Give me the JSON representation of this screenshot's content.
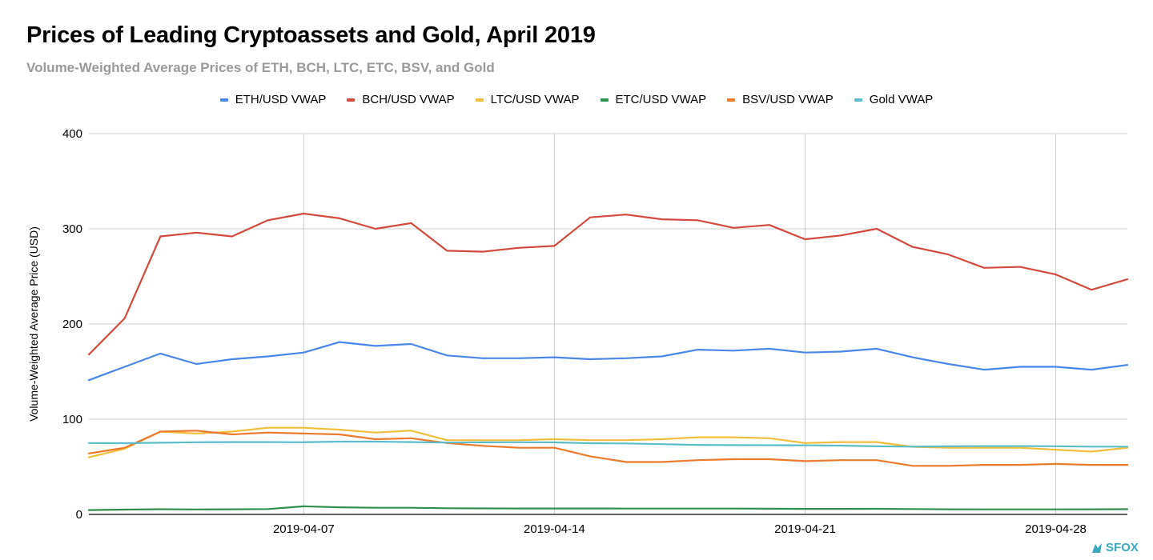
{
  "header": {
    "title": "Prices of Leading Cryptoassets and Gold, April 2019",
    "subtitle": "Volume-Weighted Average Prices of ETH, BCH, LTC, ETC, BSV, and Gold"
  },
  "brand": {
    "logo_text": "SFOX",
    "color": "#39a9c0"
  },
  "chart_data": {
    "type": "line",
    "title": "Prices of Leading Cryptoassets and Gold, April 2019",
    "subtitle": "Volume-Weighted Average Prices of ETH, BCH, LTC, ETC, BSV, and Gold",
    "xlabel": "",
    "ylabel": "Volume-Weighted Average Price (USD)",
    "ylim": [
      0,
      400
    ],
    "yticks": [
      0,
      100,
      200,
      300,
      400
    ],
    "xticks": [
      "2019-04-07",
      "2019-04-14",
      "2019-04-21",
      "2019-04-28"
    ],
    "grid": true,
    "legend_position": "top",
    "x": [
      "2019-04-01",
      "2019-04-02",
      "2019-04-03",
      "2019-04-04",
      "2019-04-05",
      "2019-04-06",
      "2019-04-07",
      "2019-04-08",
      "2019-04-09",
      "2019-04-10",
      "2019-04-11",
      "2019-04-12",
      "2019-04-13",
      "2019-04-14",
      "2019-04-15",
      "2019-04-16",
      "2019-04-17",
      "2019-04-18",
      "2019-04-19",
      "2019-04-20",
      "2019-04-21",
      "2019-04-22",
      "2019-04-23",
      "2019-04-24",
      "2019-04-25",
      "2019-04-26",
      "2019-04-27",
      "2019-04-28",
      "2019-04-29",
      "2019-04-30"
    ],
    "series": [
      {
        "name": "ETH/USD VWAP",
        "color": "#4a86e8",
        "values": [
          141,
          155,
          169,
          158,
          163,
          166,
          170,
          181,
          177,
          179,
          167,
          164,
          164,
          165,
          163,
          164,
          166,
          173,
          172,
          174,
          170,
          171,
          174,
          165,
          158,
          152,
          155,
          155,
          152,
          157
        ]
      },
      {
        "name": "BCH/USD VWAP",
        "color": "#d14a3d",
        "values": [
          168,
          206,
          292,
          296,
          292,
          309,
          316,
          311,
          300,
          306,
          277,
          276,
          280,
          282,
          312,
          315,
          310,
          309,
          301,
          304,
          289,
          293,
          300,
          281,
          273,
          259,
          260,
          252,
          236,
          247
        ]
      },
      {
        "name": "LTC/USD VWAP",
        "color": "#f1bd3c",
        "values": [
          60,
          69,
          87,
          85,
          87,
          91,
          91,
          89,
          86,
          88,
          78,
          78,
          78,
          79,
          78,
          78,
          79,
          81,
          81,
          80,
          75,
          76,
          76,
          71,
          70,
          70,
          70,
          68,
          66,
          70
        ]
      },
      {
        "name": "ETC/USD VWAP",
        "color": "#2f8f4e",
        "values": [
          4.5,
          5,
          5.5,
          5.2,
          5.4,
          5.6,
          8.5,
          7.5,
          7,
          7,
          6.5,
          6.3,
          6.2,
          6.2,
          6.2,
          6.1,
          6.1,
          6.1,
          6.1,
          6.0,
          5.8,
          5.8,
          5.9,
          5.6,
          5.4,
          5.3,
          5.3,
          5.3,
          5.4,
          5.5
        ]
      },
      {
        "name": "BSV/USD VWAP",
        "color": "#ea7a2d",
        "values": [
          64,
          70,
          87,
          88,
          84,
          86,
          85,
          84,
          79,
          80,
          75,
          72,
          70,
          70,
          61,
          55,
          55,
          57,
          58,
          58,
          56,
          57,
          57,
          51,
          51,
          52,
          52,
          53,
          52,
          52
        ]
      },
      {
        "name": "Gold VWAP",
        "color": "#5bbdc9",
        "values": [
          75,
          74.8,
          75.3,
          75.8,
          76,
          76,
          75.8,
          76.5,
          76.5,
          76,
          75.5,
          75.7,
          75.8,
          75.6,
          74.8,
          74.5,
          73.8,
          73,
          72.8,
          72.7,
          72.6,
          72.3,
          71.5,
          71.2,
          71.5,
          71.8,
          71.8,
          71.6,
          71.2,
          71.2
        ]
      }
    ]
  }
}
